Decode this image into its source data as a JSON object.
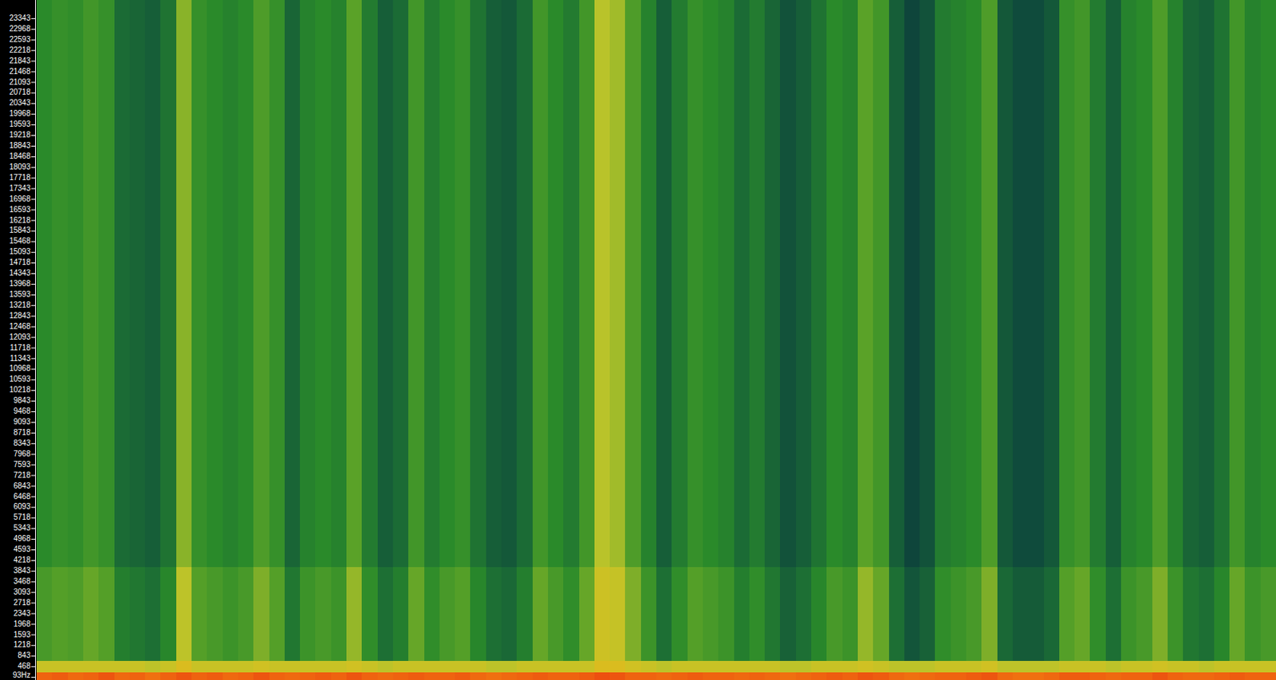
{
  "chart_data": {
    "type": "heatmap",
    "tick_labels": "y",
    "ylim": [
      0,
      24000
    ],
    "yticks": [
      {
        "value": 93,
        "label": "93Hz"
      },
      468,
      843,
      1218,
      1593,
      1968,
      2343,
      2718,
      3093,
      3468,
      3843,
      4218,
      4593,
      4968,
      5343,
      5718,
      6093,
      6468,
      6843,
      7218,
      7593,
      7968,
      8343,
      8718,
      9093,
      9468,
      9843,
      10218,
      10593,
      10968,
      11343,
      11718,
      12093,
      12468,
      12843,
      13218,
      13593,
      13968,
      14343,
      14718,
      15093,
      15468,
      15843,
      16218,
      16593,
      16968,
      17343,
      17718,
      18093,
      18468,
      18843,
      19218,
      19593,
      19968,
      20343,
      20718,
      21093,
      21468,
      21843,
      22218,
      22593,
      22968,
      23343
    ],
    "y_edges": [
      0,
      280,
      700,
      4000,
      24000
    ],
    "zlim": [
      -100,
      -20
    ],
    "cells": [
      [
        -30,
        -29,
        -31,
        -30,
        -28,
        -31,
        -30,
        -32,
        -30,
        -28,
        -30,
        -29,
        -31,
        -30,
        -28,
        -30,
        -31,
        -30,
        -29,
        -30,
        -28,
        -30,
        -31,
        -30,
        -29,
        -30,
        -30,
        -29,
        -31,
        -32,
        -31,
        -30,
        -29,
        -30,
        -30,
        -29,
        -27,
        -28,
        -30,
        -30,
        -31,
        -30,
        -29,
        -30,
        -30,
        -31,
        -30,
        -31,
        -32,
        -31,
        -30,
        -29,
        -30,
        -28,
        -29,
        -31,
        -32,
        -31,
        -30,
        -30,
        -29,
        -28,
        -31,
        -32,
        -32,
        -31,
        -29,
        -29,
        -30,
        -31,
        -30,
        -30,
        -28,
        -30,
        -31,
        -31,
        -30,
        -29,
        -30,
        -30
      ],
      [
        -52,
        -52,
        -52,
        -52,
        -52,
        -52,
        -52,
        -55,
        -52,
        -47,
        -52,
        -52,
        -52,
        -52,
        -50,
        -52,
        -52,
        -52,
        -52,
        -52,
        -50,
        -52,
        -55,
        -52,
        -52,
        -52,
        -52,
        -52,
        -52,
        -55,
        -55,
        -52,
        -52,
        -52,
        -52,
        -52,
        -47,
        -47,
        -50,
        -52,
        -55,
        -52,
        -52,
        -52,
        -52,
        -52,
        -52,
        -52,
        -55,
        -55,
        -52,
        -52,
        -52,
        -50,
        -52,
        -55,
        -55,
        -55,
        -52,
        -52,
        -52,
        -50,
        -55,
        -55,
        -55,
        -55,
        -52,
        -52,
        -52,
        -55,
        -52,
        -52,
        -50,
        -52,
        -52,
        -55,
        -52,
        -52,
        -52,
        -52
      ],
      [
        -67,
        -65,
        -66,
        -63,
        -65,
        -75,
        -77,
        -79,
        -73,
        -55,
        -65,
        -67,
        -69,
        -67,
        -61,
        -65,
        -77,
        -69,
        -67,
        -69,
        -59,
        -71,
        -79,
        -75,
        -63,
        -71,
        -67,
        -65,
        -73,
        -79,
        -81,
        -75,
        -63,
        -67,
        -71,
        -63,
        -51,
        -53,
        -61,
        -69,
        -79,
        -71,
        -65,
        -67,
        -69,
        -75,
        -71,
        -77,
        -83,
        -79,
        -73,
        -67,
        -69,
        -59,
        -63,
        -79,
        -87,
        -83,
        -71,
        -69,
        -67,
        -61,
        -81,
        -85,
        -85,
        -81,
        -65,
        -63,
        -71,
        -79,
        -69,
        -67,
        -61,
        -69,
        -77,
        -79,
        -73,
        -63,
        -69,
        -67
      ],
      [
        -72,
        -70,
        -71,
        -68,
        -70,
        -80,
        -82,
        -84,
        -78,
        -60,
        -70,
        -72,
        -74,
        -72,
        -66,
        -70,
        -82,
        -74,
        -72,
        -74,
        -64,
        -76,
        -84,
        -80,
        -68,
        -76,
        -72,
        -70,
        -78,
        -84,
        -86,
        -80,
        -68,
        -72,
        -76,
        -68,
        -56,
        -58,
        -66,
        -74,
        -84,
        -76,
        -70,
        -72,
        -74,
        -80,
        -76,
        -82,
        -88,
        -84,
        -78,
        -72,
        -74,
        -64,
        -68,
        -84,
        -92,
        -88,
        -76,
        -74,
        -72,
        -66,
        -86,
        -90,
        -90,
        -86,
        -70,
        -68,
        -76,
        -84,
        -74,
        -72,
        -66,
        -74,
        -82,
        -84,
        -78,
        -68,
        -74,
        -72
      ]
    ]
  }
}
